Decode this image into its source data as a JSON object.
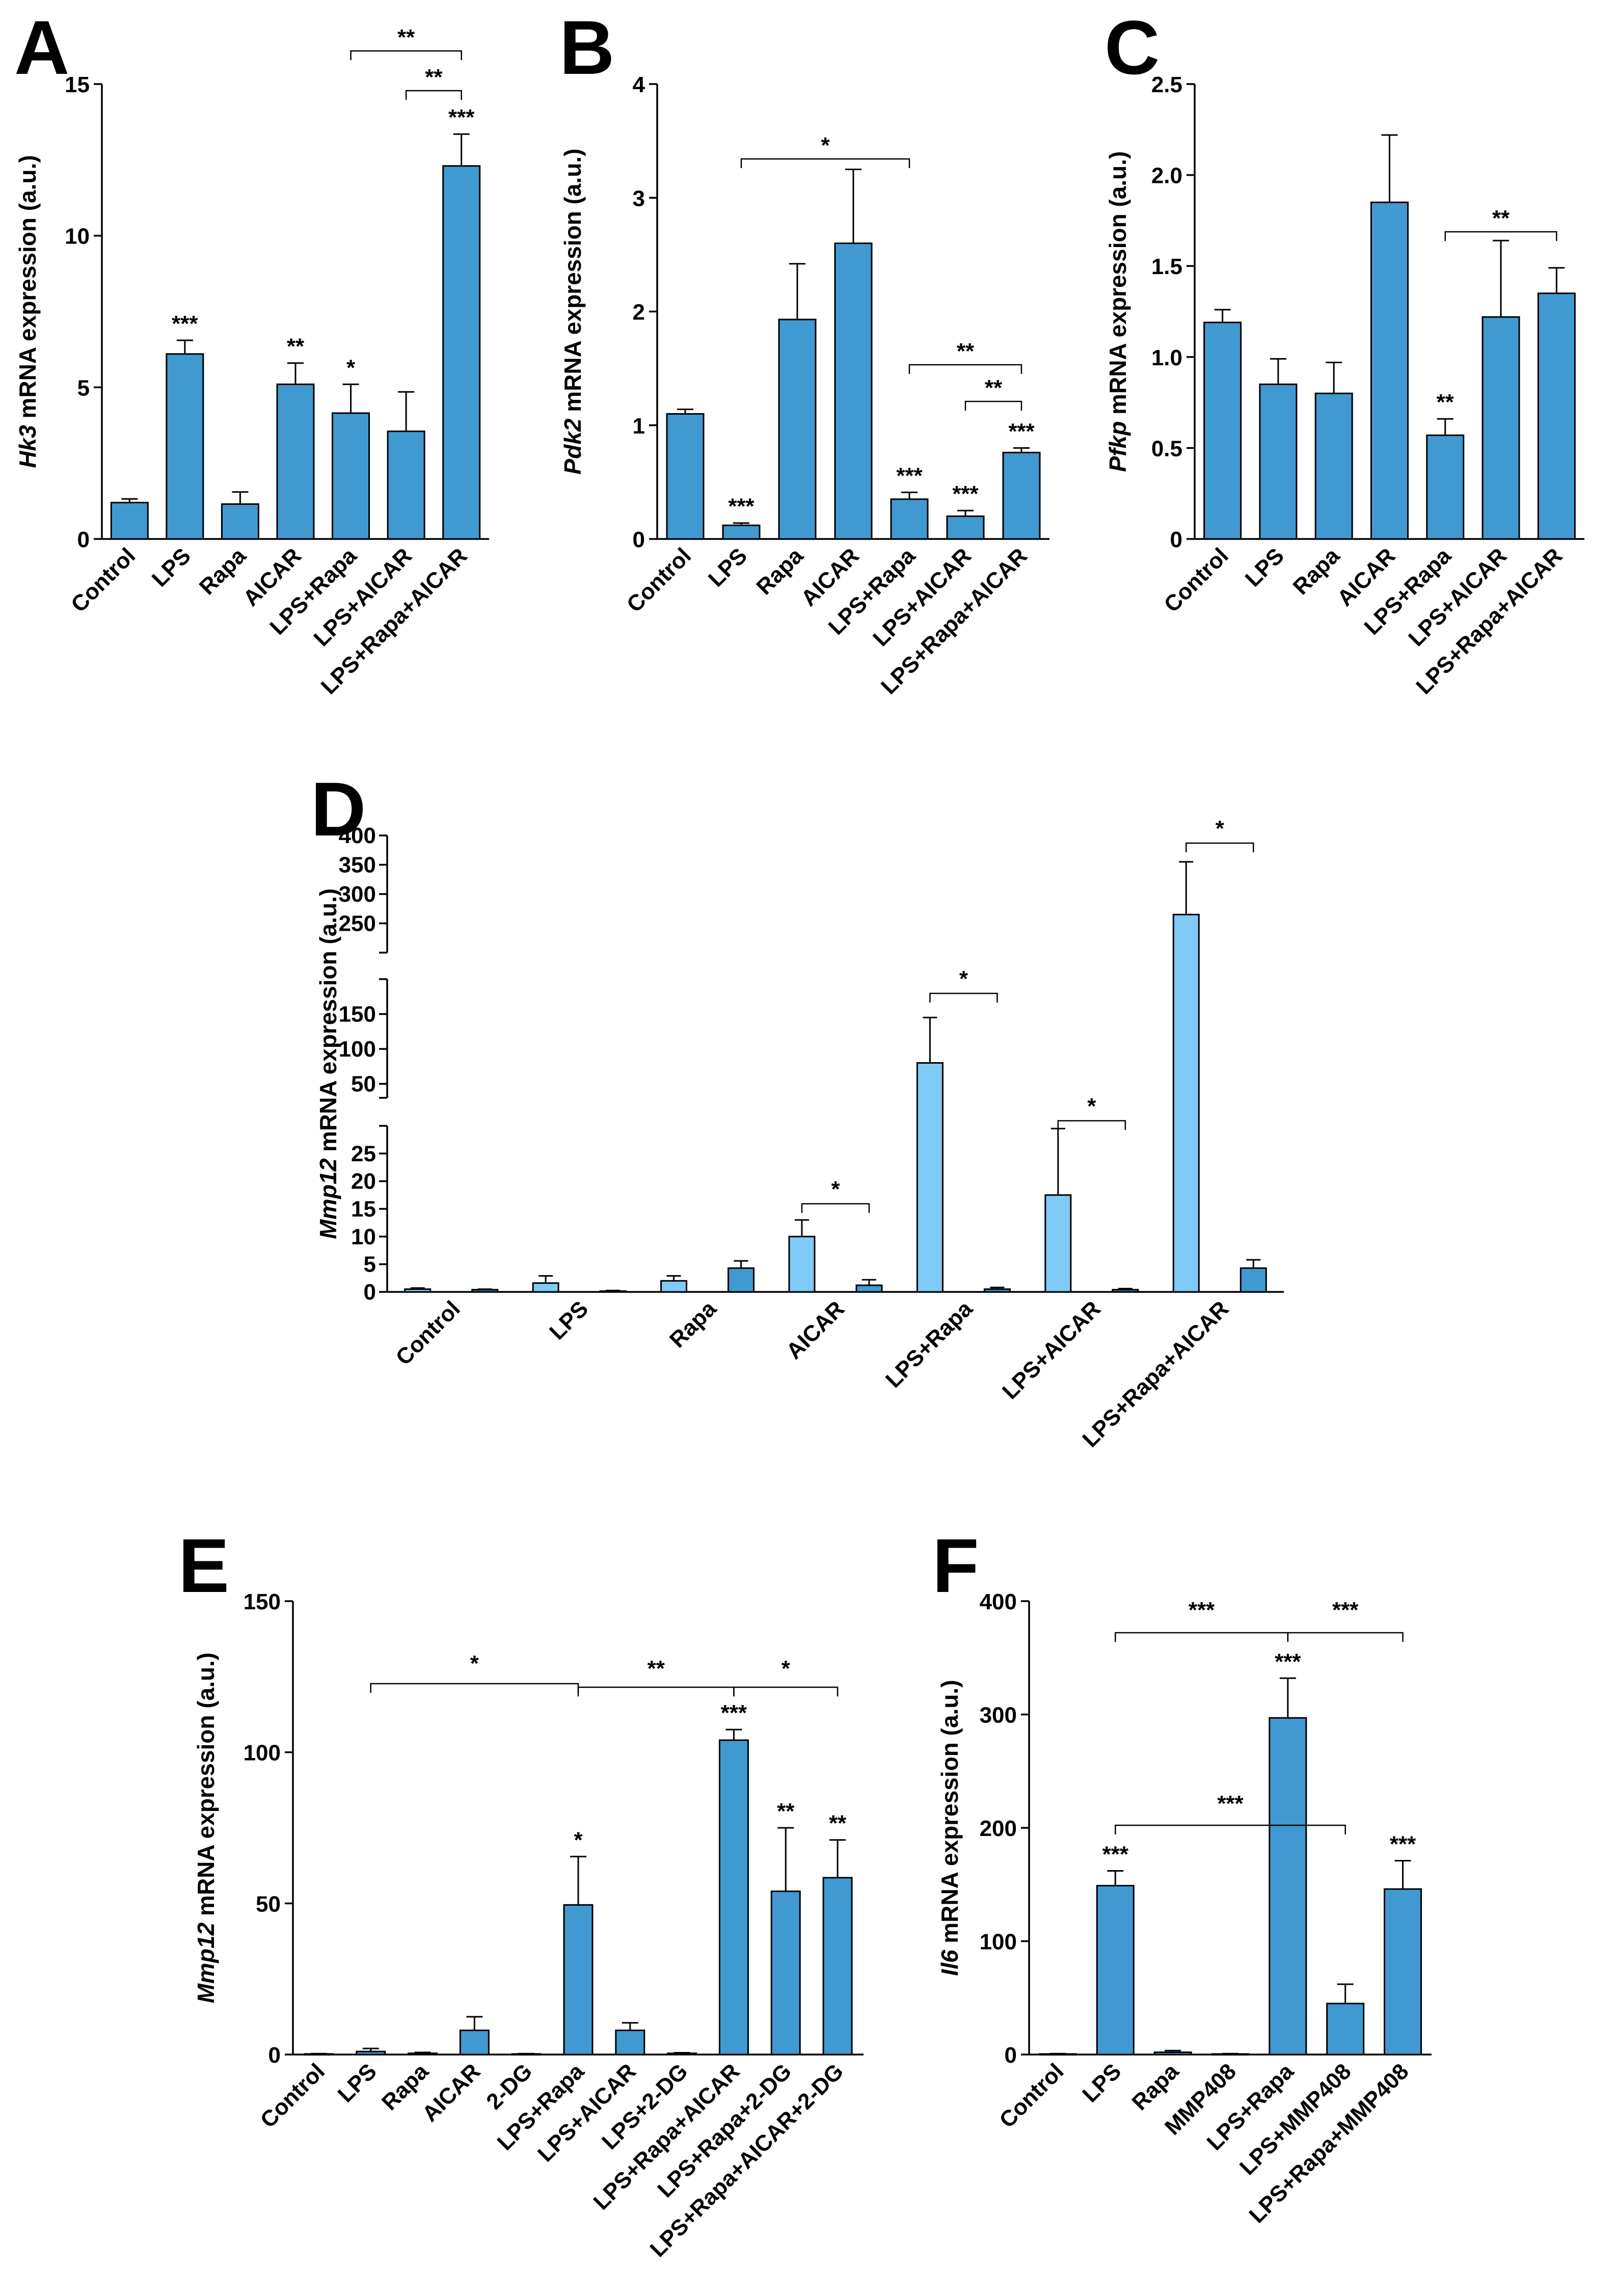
{
  "colors": {
    "dark_bar": "#4199d1",
    "light_bar": "#7fcaf7",
    "axis": "#000000"
  },
  "chart_data": [
    {
      "panel": "A",
      "type": "bar",
      "ylabel_gene": "Hk3",
      "ylabel_rest": " mRNA expression (a.u.)",
      "categories": [
        "Control",
        "LPS",
        "Rapa",
        "AICAR",
        "LPS+Rapa",
        "LPS+AICAR",
        "LPS+Rapa+AICAR"
      ],
      "values": [
        1.2,
        6.1,
        1.15,
        5.1,
        4.15,
        3.55,
        12.3
      ],
      "errors": [
        0.12,
        0.45,
        0.4,
        0.7,
        0.95,
        1.3,
        1.05
      ],
      "ylim": [
        0,
        15
      ],
      "yticks": [
        0,
        5,
        10,
        15
      ],
      "bar_annotations": [
        "",
        "***",
        "",
        "**",
        "*",
        "",
        "***"
      ],
      "brackets": [
        {
          "from": 4,
          "to": 6,
          "label": "**"
        },
        {
          "from": 5,
          "to": 6,
          "label": "**"
        }
      ]
    },
    {
      "panel": "B",
      "type": "bar",
      "ylabel_gene": "Pdk2",
      "ylabel_rest": " mRNA expression (a.u.)",
      "categories": [
        "Control",
        "LPS",
        "Rapa",
        "AICAR",
        "LPS+Rapa",
        "LPS+AICAR",
        "LPS+Rapa+AICAR"
      ],
      "values": [
        1.1,
        0.12,
        1.93,
        2.6,
        0.35,
        0.2,
        0.76
      ],
      "errors": [
        0.04,
        0.02,
        0.49,
        0.65,
        0.06,
        0.05,
        0.04
      ],
      "ylim": [
        0,
        4
      ],
      "yticks": [
        0,
        1,
        2,
        3,
        4
      ],
      "bar_annotations": [
        "",
        "***",
        "",
        "",
        "***",
        "***",
        "***"
      ],
      "brackets": [
        {
          "from": 1,
          "to": 4,
          "label": "*"
        },
        {
          "from": 4,
          "to": 6,
          "label": "**"
        },
        {
          "from": 5,
          "to": 6,
          "label": "**"
        }
      ]
    },
    {
      "panel": "C",
      "type": "bar",
      "ylabel_gene": "Pfkp",
      "ylabel_rest": " mRNA expression (a.u.)",
      "categories": [
        "Control",
        "LPS",
        "Rapa",
        "AICAR",
        "LPS+Rapa",
        "LPS+AICAR",
        "LPS+Rapa+AICAR"
      ],
      "values": [
        1.19,
        0.85,
        0.8,
        1.85,
        0.57,
        1.22,
        1.35
      ],
      "errors": [
        0.07,
        0.14,
        0.17,
        0.37,
        0.09,
        0.42,
        0.14
      ],
      "ylim": [
        0,
        2.5
      ],
      "yticks": [
        0,
        0.5,
        1.0,
        1.5,
        2.0,
        2.5
      ],
      "ytick_labels": [
        "0",
        "0.5",
        "1.0",
        "1.5",
        "2.0",
        "2.5"
      ],
      "bar_annotations": [
        "",
        "",
        "",
        "",
        "**",
        "",
        ""
      ],
      "brackets": [
        {
          "from": 4,
          "to": 6,
          "label": "**"
        }
      ]
    },
    {
      "panel": "D",
      "type": "bar",
      "ylabel_gene": "Mmp12",
      "ylabel_rest": " mRNA expression (a.u.)",
      "categories": [
        "Control",
        "LPS",
        "Rapa",
        "AICAR",
        "LPS+Rapa",
        "LPS+AICAR",
        "LPS+Rapa+AICAR"
      ],
      "series": [
        {
          "name": "light",
          "values": [
            0.5,
            1.6,
            2.0,
            10.0,
            80,
            17.5,
            265
          ],
          "errors": [
            0.2,
            1.3,
            0.9,
            3.0,
            65,
            12,
            90
          ]
        },
        {
          "name": "dark",
          "values": [
            0.4,
            0.15,
            4.3,
            1.2,
            0.5,
            0.4,
            4.3
          ],
          "errors": [
            0.1,
            0.1,
            1.3,
            1.0,
            0.3,
            0.2,
            1.5
          ]
        }
      ],
      "segments": [
        [
          0,
          30
        ],
        [
          30,
          200
        ],
        [
          200,
          400
        ]
      ],
      "yticks": [
        0,
        5,
        10,
        15,
        20,
        25,
        50,
        100,
        150,
        250,
        300,
        350,
        400
      ],
      "bar_annotations": [],
      "brackets": [
        {
          "group": 3,
          "label": "*"
        },
        {
          "group": 4,
          "label": "*"
        },
        {
          "group": 5,
          "label": "*"
        },
        {
          "group": 6,
          "label": "*"
        }
      ]
    },
    {
      "panel": "E",
      "type": "bar",
      "ylabel_gene": "Mmp12",
      "ylabel_rest": " mRNA expression (a.u.)",
      "categories": [
        "Control",
        "LPS",
        "Rapa",
        "AICAR",
        "2-DG",
        "LPS+Rapa",
        "LPS+AICAR",
        "LPS+2-DG",
        "LPS+Rapa+AICAR",
        "LPS+Rapa+2-DG",
        "LPS+Rapa+AICAR+2-DG"
      ],
      "values": [
        0.2,
        1.0,
        0.4,
        8.0,
        0.2,
        49.5,
        8.0,
        0.4,
        104,
        54,
        58.5
      ],
      "errors": [
        0.1,
        1.0,
        0.3,
        4.5,
        0.1,
        16,
        2.5,
        0.2,
        3.5,
        21,
        12.5
      ],
      "ylim": [
        0,
        150
      ],
      "yticks": [
        0,
        50,
        100,
        150
      ],
      "bar_annotations": [
        "",
        "",
        "",
        "",
        "",
        "*",
        "",
        "",
        "***",
        "**",
        "**"
      ],
      "brackets": [
        {
          "from": 1,
          "to": 5,
          "label": "*"
        },
        {
          "from": 5,
          "to": 8,
          "label": "**"
        },
        {
          "from": 8,
          "to": 10,
          "label": "*"
        }
      ]
    },
    {
      "panel": "F",
      "type": "bar",
      "ylabel_gene": "Il6",
      "ylabel_rest": " mRNA expression (a.u.)",
      "categories": [
        "Control",
        "LPS",
        "Rapa",
        "MMP408",
        "LPS+Rapa",
        "LPS+MMP408",
        "LPS+Rapa+MMP408"
      ],
      "values": [
        0.5,
        149,
        2.0,
        0.5,
        297,
        45,
        146
      ],
      "errors": [
        0.3,
        13,
        1.5,
        0.3,
        35,
        17,
        25
      ],
      "ylim": [
        0,
        400
      ],
      "yticks": [
        0,
        100,
        200,
        300,
        400
      ],
      "bar_annotations": [
        "",
        "***",
        "",
        "",
        "***",
        "",
        "***"
      ],
      "brackets": [
        {
          "from": 1,
          "to": 4,
          "label": "***"
        },
        {
          "from": 4,
          "to": 6,
          "label": "***"
        },
        {
          "from": 1,
          "to": 5,
          "label": "***"
        }
      ]
    }
  ]
}
